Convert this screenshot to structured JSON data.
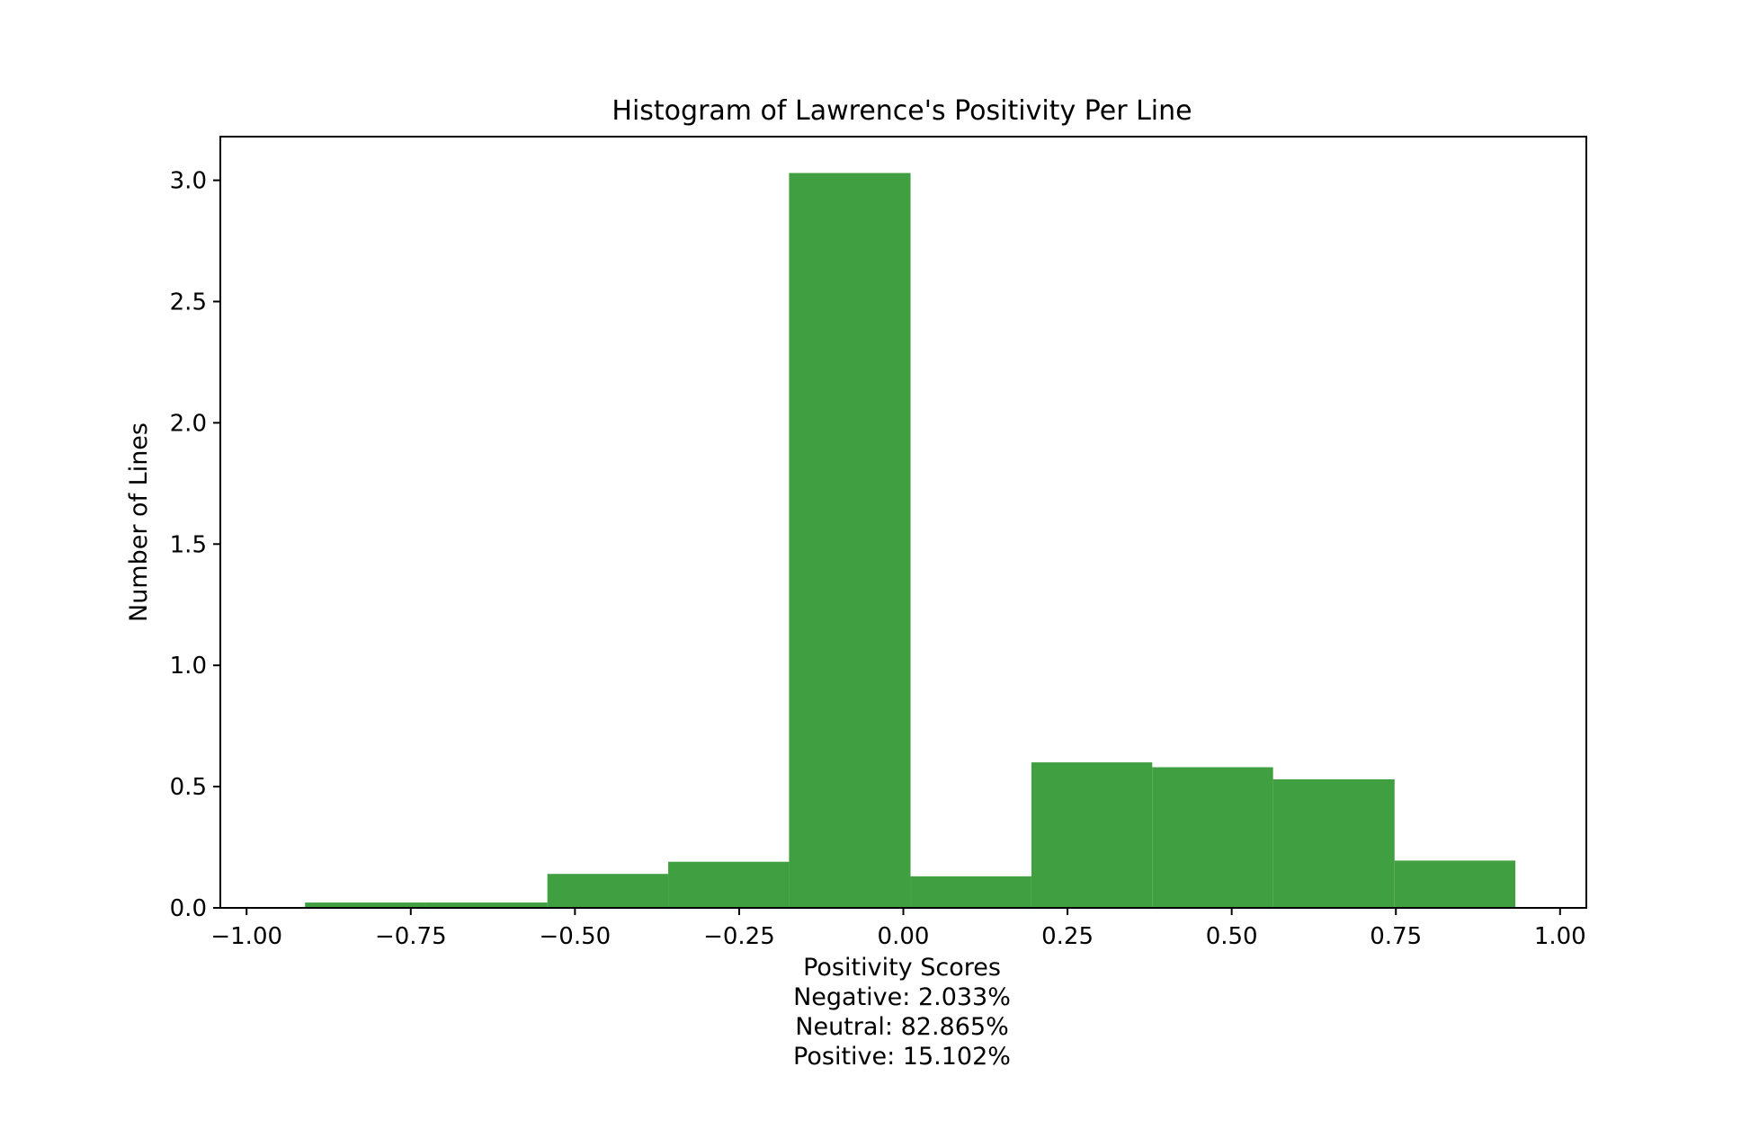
{
  "chart_data": {
    "type": "bar",
    "title": "Histogram of Lawrence's Positivity Per Line",
    "xlabel_lines": [
      "Positivity Scores",
      "Negative: 2.033%",
      "Neutral: 82.865%",
      "Positive: 15.102%"
    ],
    "ylabel": "Number of Lines",
    "xlim": [
      -1.04,
      1.04
    ],
    "ylim": [
      0,
      3.18
    ],
    "x_ticks": [
      -1.0,
      -0.75,
      -0.5,
      -0.25,
      0.0,
      0.25,
      0.5,
      0.75,
      1.0
    ],
    "x_tick_labels": [
      "−1.00",
      "−0.75",
      "−0.50",
      "−0.25",
      "0.00",
      "0.25",
      "0.50",
      "0.75",
      "1.00"
    ],
    "y_ticks": [
      0.0,
      0.5,
      1.0,
      1.5,
      2.0,
      2.5,
      3.0
    ],
    "y_tick_labels": [
      "0.0",
      "0.5",
      "1.0",
      "1.5",
      "2.0",
      "2.5",
      "3.0"
    ],
    "bin_edges": [
      -0.911,
      -0.727,
      -0.542,
      -0.358,
      -0.174,
      0.011,
      0.195,
      0.379,
      0.563,
      0.748,
      0.932
    ],
    "values": [
      0.022,
      0.022,
      0.14,
      0.19,
      3.03,
      0.13,
      0.6,
      0.58,
      0.53,
      0.195
    ],
    "color": "#409f40",
    "grid": false,
    "legend": false
  }
}
